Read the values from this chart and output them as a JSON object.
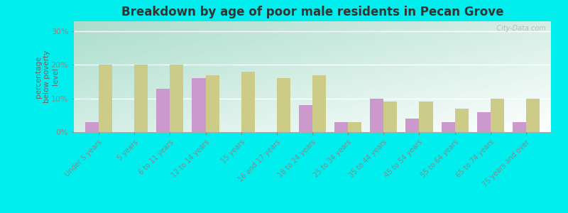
{
  "title": "Breakdown by age of poor male residents in Pecan Grove",
  "ylabel": "percentage\nbelow poverty\nlevel",
  "categories": [
    "Under 5 years",
    "5 years",
    "6 to 11 years",
    "12 to 14 years",
    "15 years",
    "16 and 17 years",
    "18 to 24 years",
    "25 to 34 years",
    "35 to 44 years",
    "45 to 54 years",
    "55 to 64 years",
    "65 to 74 years",
    "75 years and over"
  ],
  "pecan_grove": [
    3,
    0,
    13,
    16,
    0,
    0,
    8,
    3,
    10,
    4,
    3,
    6,
    3
  ],
  "texas": [
    20,
    20,
    20,
    17,
    18,
    16,
    17,
    3,
    9,
    9,
    7,
    10,
    10
  ],
  "pecan_grove_color": "#cc99cc",
  "texas_color": "#cccc88",
  "bg_color": "#00eeee",
  "plot_bg_topleft": "#aaddcc",
  "plot_bg_bottomright": "#f0f8e8",
  "bar_width": 0.38,
  "ylim": [
    0,
    33
  ],
  "yticks": [
    0,
    10,
    20,
    30
  ],
  "ytick_labels": [
    "0%",
    "10%",
    "20%",
    "30%"
  ],
  "watermark": "  City-Data.com"
}
